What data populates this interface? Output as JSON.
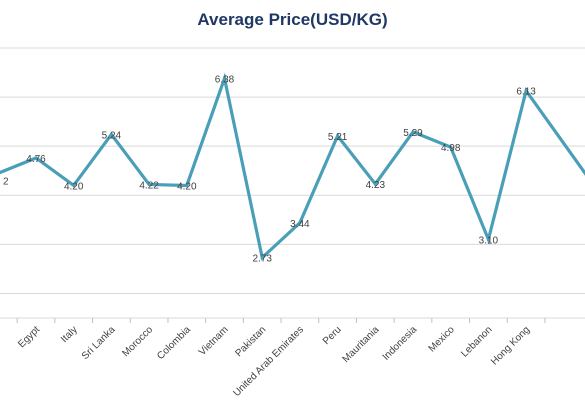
{
  "chart_data": {
    "type": "line",
    "title": "Average Price(USD/KG)",
    "xlabel": "",
    "ylabel": "",
    "ylim": [
      1.5,
      7.0
    ],
    "grid": true,
    "legend": "none",
    "series_color": "#4a9fb8",
    "categories": [
      "Egypt",
      "Italy",
      "Sri Lanka",
      "Morocco",
      "Colombia",
      "Vietnam",
      "Pakistan",
      "United Arab Emirates",
      "Peru",
      "Mauritania",
      "Indonesia",
      "Mexico",
      "Lebanon",
      "Hong Kong"
    ],
    "series": [
      {
        "values": [
          4.76,
          4.2,
          5.24,
          4.22,
          4.2,
          6.38,
          2.73,
          3.44,
          5.21,
          4.23,
          5.29,
          4.98,
          3.1,
          6.13
        ],
        "labels": [
          "4.76",
          "4.20",
          "5.24",
          "4.22",
          "4.20",
          "6.38",
          "2.73",
          "3.44",
          "5.21",
          "4.23",
          "5.29",
          "4.98",
          "3.10",
          "6.13"
        ]
      }
    ],
    "partial_left": {
      "value": 4.3,
      "label": "2"
    },
    "partial_right": {
      "value": 4.9
    }
  }
}
